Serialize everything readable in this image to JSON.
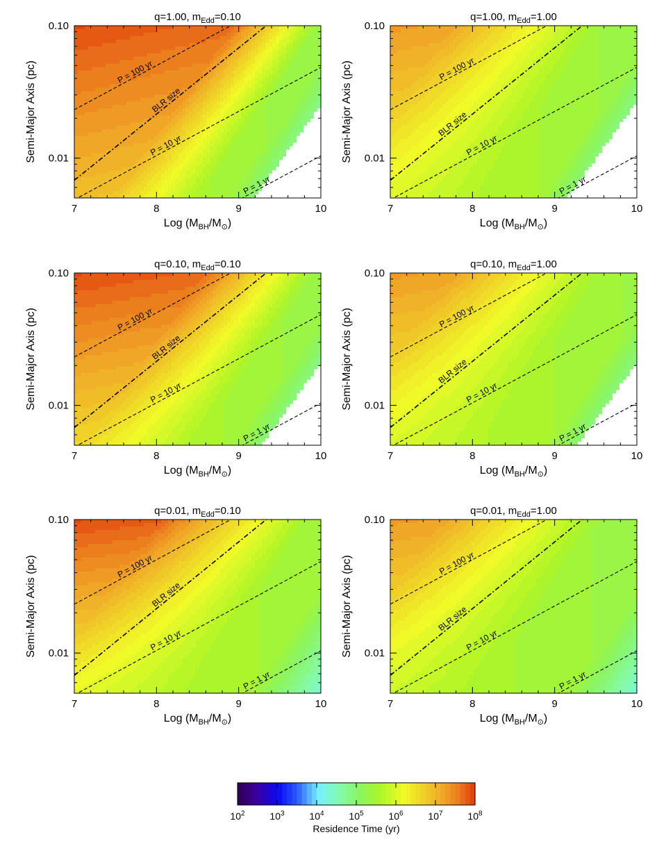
{
  "chart_data": {
    "type": "heatmap",
    "x_label": "Log (M",
    "x_label_sub": "BH",
    "x_label_mid": "/M",
    "x_label_sub2": "⊙",
    "x_label_end": ")",
    "y_label": "Semi-Major Axis (pc)",
    "xlim": [
      7,
      10
    ],
    "ylim": [
      0.005,
      0.1
    ],
    "y_scale": "log",
    "x_ticks": [
      "7",
      "8",
      "9",
      "10"
    ],
    "x_tick_values": [
      7,
      8,
      9,
      10
    ],
    "y_ticks": [
      "0.01",
      "0.10"
    ],
    "y_tick_values": [
      0.01,
      0.1
    ],
    "lines": [
      {
        "label": "P = 100 yr",
        "style": "dashed",
        "slope": 0.3333,
        "a_at_x7": 0.0232
      },
      {
        "label": "P = 10 yr",
        "style": "dashed",
        "slope": 0.3333,
        "a_at_x7": 0.00485
      },
      {
        "label": "P = 1 yr",
        "style": "dashed",
        "slope": 0.3333,
        "a_at_x7": 0.00104
      },
      {
        "label": "BLR size",
        "style": "dash-dot",
        "slope": 0.5,
        "a_at_x7": 0.0068
      }
    ],
    "panels": [
      {
        "title_q": "q=1.00, m",
        "title_sub": "Edd",
        "title_end": "=0.10",
        "q": 1.0,
        "m_edd": 0.1,
        "log_t_upper_left": 7.9,
        "log_t_lower_left": 6.9,
        "cliff_line": 0.5,
        "cliff_width": 0.35,
        "green_log_t": 5.8,
        "green_drop": 0.55,
        "blue_line": 0.62,
        "blue_rate": 4.2,
        "white_line": 0.73,
        "labels": {
          "p100": "P = 100 yr",
          "blr": "BLR size",
          "p10": "P = 10 yr",
          "p1": "P = 1 yr"
        }
      },
      {
        "title_q": "q=1.00, m",
        "title_sub": "Edd",
        "title_end": "=1.00",
        "q": 1.0,
        "m_edd": 1.0,
        "log_t_upper_left": 7.3,
        "log_t_lower_left": 6.2,
        "cliff_line": 0.35,
        "cliff_width": 0.6,
        "green_log_t": 5.8,
        "green_drop": 0.5,
        "blue_line": 0.6,
        "blue_rate": 4.0,
        "white_line": 0.72,
        "labels": {
          "p100": "P = 100 yr",
          "blr": "BLR size",
          "p10": "P = 10 yr",
          "p1": "P = 1 yr"
        }
      },
      {
        "title_q": "q=0.10, m",
        "title_sub": "Edd",
        "title_end": "=0.10",
        "q": 0.1,
        "m_edd": 0.1,
        "log_t_upper_left": 7.9,
        "log_t_lower_left": 6.6,
        "cliff_line": 0.48,
        "cliff_width": 0.45,
        "green_log_t": 5.8,
        "green_drop": 0.5,
        "blue_line": 0.64,
        "blue_rate": 4.0,
        "white_line": 0.76,
        "labels": {
          "p100": "P = 100 yr",
          "blr": "BLR size",
          "p10": "P = 10 yr",
          "p1": "P = 1 yr"
        }
      },
      {
        "title_q": "q=0.10, m",
        "title_sub": "Edd",
        "title_end": "=1.00",
        "q": 0.1,
        "m_edd": 1.0,
        "log_t_upper_left": 7.3,
        "log_t_lower_left": 6.1,
        "cliff_line": 0.36,
        "cliff_width": 0.6,
        "green_log_t": 5.8,
        "green_drop": 0.45,
        "blue_line": 0.63,
        "blue_rate": 3.8,
        "white_line": 0.76,
        "labels": {
          "p100": "P = 100 yr",
          "blr": "BLR size",
          "p10": "P = 10 yr",
          "p1": "P = 1 yr"
        }
      },
      {
        "title_q": "q=0.01, m",
        "title_sub": "Edd",
        "title_end": "=0.10",
        "q": 0.01,
        "m_edd": 0.1,
        "log_t_upper_left": 7.9,
        "log_t_lower_left": 6.2,
        "cliff_line": 0.45,
        "cliff_width": 0.6,
        "green_log_t": 5.8,
        "green_drop": 0.4,
        "blue_line": 0.7,
        "blue_rate": 3.6,
        "white_line": 2.0,
        "labels": {
          "p100": "P = 100 yr",
          "blr": "BLR size",
          "p10": "P = 10 yr",
          "p1": "P = 1 yr"
        }
      },
      {
        "title_q": "q=0.01, m",
        "title_sub": "Edd",
        "title_end": "=1.00",
        "q": 0.01,
        "m_edd": 1.0,
        "log_t_upper_left": 7.3,
        "log_t_lower_left": 6.0,
        "cliff_line": 0.36,
        "cliff_width": 0.65,
        "green_log_t": 5.7,
        "green_drop": 0.4,
        "blue_line": 0.72,
        "blue_rate": 3.6,
        "white_line": 2.0,
        "labels": {
          "p100": "P = 100 yr",
          "blr": "BLR size",
          "p10": "P = 10 yr",
          "p1": "P = 1 yr"
        }
      }
    ],
    "colorbar": {
      "label": "Residence Time (yr)",
      "log_min": 2,
      "log_max": 8,
      "tick_base": "10",
      "tick_exponents": [
        "2",
        "3",
        "4",
        "5",
        "6",
        "7",
        "8"
      ],
      "levels": 48
    }
  }
}
